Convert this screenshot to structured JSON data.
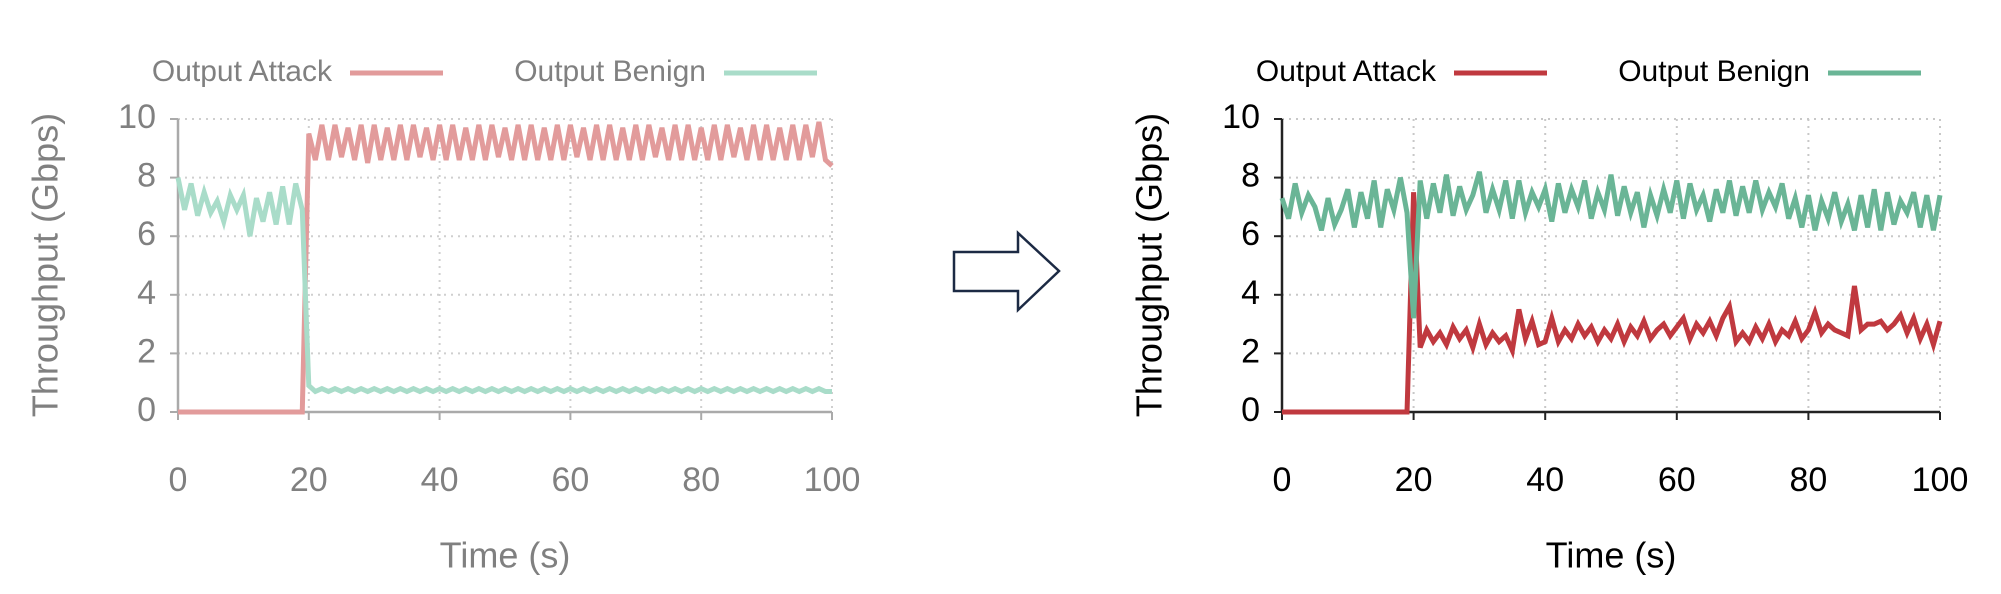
{
  "chart_data": [
    {
      "type": "line",
      "x_label": "Time (s)",
      "y_label": "Throughput (Gbps)",
      "x": [
        0,
        1,
        2,
        3,
        4,
        5,
        6,
        7,
        8,
        9,
        10,
        11,
        12,
        13,
        14,
        15,
        16,
        17,
        18,
        19,
        20,
        21,
        22,
        23,
        24,
        25,
        26,
        27,
        28,
        29,
        30,
        31,
        32,
        33,
        34,
        35,
        36,
        37,
        38,
        39,
        40,
        41,
        42,
        43,
        44,
        45,
        46,
        47,
        48,
        49,
        50,
        51,
        52,
        53,
        54,
        55,
        56,
        57,
        58,
        59,
        60,
        61,
        62,
        63,
        64,
        65,
        66,
        67,
        68,
        69,
        70,
        71,
        72,
        73,
        74,
        75,
        76,
        77,
        78,
        79,
        80,
        81,
        82,
        83,
        84,
        85,
        86,
        87,
        88,
        89,
        90,
        91,
        92,
        93,
        94,
        95,
        96,
        97,
        98,
        99,
        100
      ],
      "series": [
        {
          "name": "Output Attack",
          "color": "#e29b9b",
          "values": [
            0,
            0,
            0,
            0,
            0,
            0,
            0,
            0,
            0,
            0,
            0,
            0,
            0,
            0,
            0,
            0,
            0,
            0,
            0,
            0,
            9.5,
            8.6,
            9.8,
            8.6,
            9.8,
            8.7,
            9.7,
            8.6,
            9.8,
            8.5,
            9.8,
            8.6,
            9.7,
            8.6,
            9.8,
            8.6,
            9.8,
            8.7,
            9.7,
            8.6,
            9.8,
            8.6,
            9.8,
            8.6,
            9.7,
            8.6,
            9.8,
            8.6,
            9.8,
            8.7,
            9.7,
            8.6,
            9.8,
            8.6,
            9.8,
            8.6,
            9.7,
            8.6,
            9.8,
            8.6,
            9.8,
            8.7,
            9.7,
            8.6,
            9.8,
            8.6,
            9.8,
            8.6,
            9.7,
            8.6,
            9.8,
            8.6,
            9.8,
            8.7,
            9.7,
            8.6,
            9.8,
            8.6,
            9.8,
            8.6,
            9.7,
            8.6,
            9.8,
            8.6,
            9.8,
            8.7,
            9.7,
            8.6,
            9.8,
            8.6,
            9.8,
            8.6,
            9.7,
            8.6,
            9.8,
            8.6,
            9.8,
            8.7,
            9.9,
            8.6,
            8.4
          ]
        },
        {
          "name": "Output Benign",
          "color": "#a9dcc9",
          "values": [
            8.0,
            6.9,
            7.8,
            6.7,
            7.5,
            6.8,
            7.2,
            6.5,
            7.4,
            6.9,
            7.4,
            6.0,
            7.3,
            6.5,
            7.5,
            6.4,
            7.7,
            6.4,
            7.8,
            6.9,
            0.9,
            0.7,
            0.8,
            0.7,
            0.8,
            0.7,
            0.8,
            0.7,
            0.8,
            0.7,
            0.8,
            0.7,
            0.8,
            0.7,
            0.8,
            0.7,
            0.8,
            0.7,
            0.8,
            0.7,
            0.8,
            0.7,
            0.8,
            0.7,
            0.8,
            0.7,
            0.8,
            0.7,
            0.8,
            0.7,
            0.8,
            0.7,
            0.8,
            0.7,
            0.8,
            0.7,
            0.8,
            0.7,
            0.8,
            0.7,
            0.8,
            0.7,
            0.8,
            0.7,
            0.8,
            0.7,
            0.8,
            0.7,
            0.8,
            0.7,
            0.8,
            0.7,
            0.8,
            0.7,
            0.8,
            0.7,
            0.8,
            0.7,
            0.8,
            0.7,
            0.8,
            0.7,
            0.8,
            0.7,
            0.8,
            0.7,
            0.8,
            0.7,
            0.8,
            0.7,
            0.8,
            0.7,
            0.8,
            0.7,
            0.8,
            0.7,
            0.8,
            0.7,
            0.8,
            0.7,
            0.7
          ]
        }
      ],
      "xlim": [
        0,
        100
      ],
      "ylim": [
        0,
        10
      ],
      "xticks": [
        0,
        20,
        40,
        60,
        80,
        100
      ],
      "yticks": [
        0,
        2,
        4,
        6,
        8,
        10
      ],
      "grid": true
    },
    {
      "type": "line",
      "x_label": "Time (s)",
      "y_label": "Throughput (Gbps)",
      "x": [
        0,
        1,
        2,
        3,
        4,
        5,
        6,
        7,
        8,
        9,
        10,
        11,
        12,
        13,
        14,
        15,
        16,
        17,
        18,
        19,
        20,
        21,
        22,
        23,
        24,
        25,
        26,
        27,
        28,
        29,
        30,
        31,
        32,
        33,
        34,
        35,
        36,
        37,
        38,
        39,
        40,
        41,
        42,
        43,
        44,
        45,
        46,
        47,
        48,
        49,
        50,
        51,
        52,
        53,
        54,
        55,
        56,
        57,
        58,
        59,
        60,
        61,
        62,
        63,
        64,
        65,
        66,
        67,
        68,
        69,
        70,
        71,
        72,
        73,
        74,
        75,
        76,
        77,
        78,
        79,
        80,
        81,
        82,
        83,
        84,
        85,
        86,
        87,
        88,
        89,
        90,
        91,
        92,
        93,
        94,
        95,
        96,
        97,
        98,
        99,
        100
      ],
      "series": [
        {
          "name": "Output Attack",
          "color": "#c0393f",
          "values": [
            0,
            0,
            0,
            0,
            0,
            0,
            0,
            0,
            0,
            0,
            0,
            0,
            0,
            0,
            0,
            0,
            0,
            0,
            0,
            0,
            7.5,
            2.2,
            2.8,
            2.4,
            2.7,
            2.3,
            2.9,
            2.5,
            2.8,
            2.2,
            3.0,
            2.3,
            2.7,
            2.4,
            2.6,
            2.1,
            3.5,
            2.5,
            3.1,
            2.3,
            2.4,
            3.2,
            2.4,
            2.8,
            2.5,
            3.0,
            2.6,
            2.9,
            2.4,
            2.8,
            2.5,
            3.0,
            2.4,
            2.9,
            2.6,
            3.1,
            2.5,
            2.8,
            3.0,
            2.6,
            2.9,
            3.2,
            2.5,
            3.0,
            2.7,
            3.1,
            2.6,
            3.2,
            3.6,
            2.4,
            2.7,
            2.4,
            2.9,
            2.5,
            3.0,
            2.4,
            2.8,
            2.6,
            3.1,
            2.5,
            2.8,
            3.4,
            2.7,
            3.0,
            2.8,
            2.7,
            2.6,
            4.3,
            2.8,
            3.0,
            3.0,
            3.1,
            2.8,
            3.0,
            3.3,
            2.7,
            3.2,
            2.5,
            3.0,
            2.3,
            3.1
          ]
        },
        {
          "name": "Output Benign",
          "color": "#6ab596",
          "values": [
            7.3,
            6.6,
            7.8,
            6.8,
            7.4,
            7.0,
            6.2,
            7.3,
            6.4,
            6.9,
            7.6,
            6.3,
            7.5,
            6.6,
            7.9,
            6.3,
            7.6,
            6.9,
            8.0,
            6.8,
            3.2,
            7.9,
            6.6,
            7.8,
            6.8,
            8.1,
            6.7,
            7.7,
            6.9,
            7.4,
            8.2,
            6.8,
            7.6,
            6.9,
            7.9,
            6.6,
            7.9,
            6.8,
            7.5,
            7.0,
            7.6,
            6.5,
            7.8,
            6.8,
            7.6,
            7.0,
            7.9,
            6.6,
            7.5,
            6.9,
            8.1,
            6.7,
            7.7,
            6.8,
            7.5,
            6.3,
            7.4,
            6.7,
            7.6,
            6.8,
            7.9,
            6.6,
            7.8,
            6.9,
            7.4,
            6.5,
            7.6,
            6.8,
            7.9,
            6.7,
            7.7,
            6.8,
            7.9,
            6.9,
            7.5,
            7.0,
            7.8,
            6.6,
            7.3,
            6.3,
            7.4,
            6.2,
            7.2,
            6.6,
            7.5,
            6.5,
            7.1,
            6.2,
            7.4,
            6.3,
            7.6,
            6.2,
            7.5,
            6.4,
            7.2,
            6.8,
            7.5,
            6.3,
            7.4,
            6.2,
            7.4
          ]
        }
      ],
      "xlim": [
        0,
        100
      ],
      "ylim": [
        0,
        10
      ],
      "xticks": [
        0,
        20,
        40,
        60,
        80,
        100
      ],
      "yticks": [
        0,
        2,
        4,
        6,
        8,
        10
      ],
      "grid": true
    }
  ]
}
